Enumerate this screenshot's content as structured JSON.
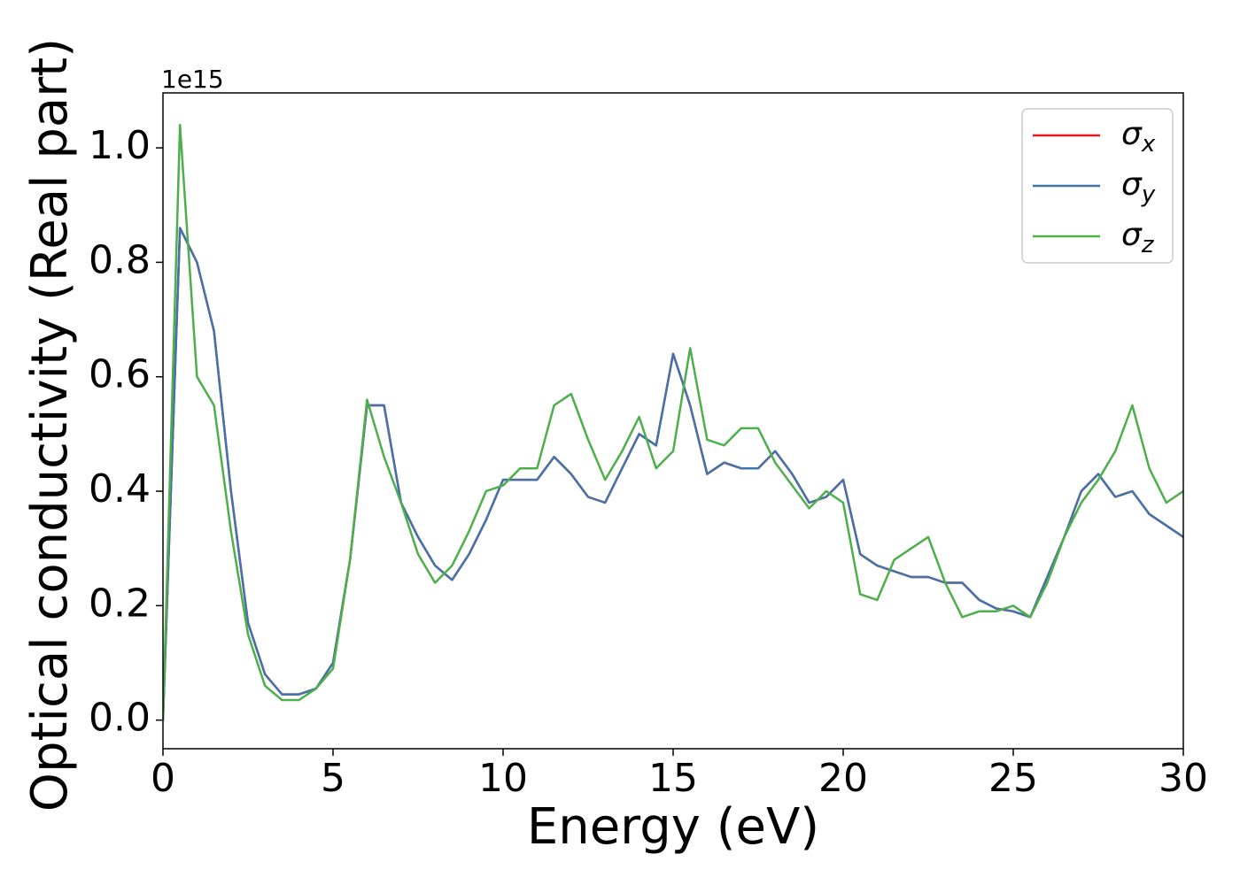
{
  "chart_data": {
    "type": "line",
    "x_label": "Energy (eV)",
    "y_label": "Optical conductivity (Real part)",
    "y_offset_label": "1e15",
    "x": [
      0,
      0.5,
      1,
      1.5,
      2,
      2.5,
      3,
      3.5,
      4,
      4.5,
      5,
      5.5,
      6,
      6.5,
      7,
      7.5,
      8,
      8.5,
      9,
      9.5,
      10,
      10.5,
      11,
      11.5,
      12,
      12.5,
      13,
      13.5,
      14,
      14.5,
      15,
      15.5,
      16,
      16.5,
      17,
      17.5,
      18,
      18.5,
      19,
      19.5,
      20,
      20.5,
      21,
      21.5,
      22,
      22.5,
      23,
      23.5,
      24,
      24.5,
      25,
      25.5,
      26,
      26.5,
      27,
      27.5,
      28,
      28.5,
      29,
      29.5,
      30
    ],
    "series": [
      {
        "name": "σx",
        "color": "#e41a1c",
        "values": [
          0,
          0.86,
          0.8,
          0.68,
          0.4,
          0.17,
          0.08,
          0.045,
          0.045,
          0.055,
          0.1,
          0.28,
          0.55,
          0.55,
          0.38,
          0.32,
          0.27,
          0.245,
          0.29,
          0.35,
          0.42,
          0.42,
          0.42,
          0.46,
          0.43,
          0.39,
          0.38,
          0.44,
          0.5,
          0.48,
          0.64,
          0.55,
          0.43,
          0.45,
          0.44,
          0.44,
          0.47,
          0.43,
          0.38,
          0.39,
          0.42,
          0.29,
          0.27,
          0.26,
          0.25,
          0.25,
          0.24,
          0.24,
          0.21,
          0.195,
          0.19,
          0.18,
          0.25,
          0.32,
          0.4,
          0.43,
          0.39,
          0.4,
          0.36,
          0.34,
          0.32
        ]
      },
      {
        "name": "σy",
        "color": "#4273aa",
        "values": [
          0,
          0.86,
          0.8,
          0.68,
          0.4,
          0.17,
          0.08,
          0.045,
          0.045,
          0.055,
          0.1,
          0.28,
          0.55,
          0.55,
          0.38,
          0.32,
          0.27,
          0.245,
          0.29,
          0.35,
          0.42,
          0.42,
          0.42,
          0.46,
          0.43,
          0.39,
          0.38,
          0.44,
          0.5,
          0.48,
          0.64,
          0.55,
          0.43,
          0.45,
          0.44,
          0.44,
          0.47,
          0.43,
          0.38,
          0.39,
          0.42,
          0.29,
          0.27,
          0.26,
          0.25,
          0.25,
          0.24,
          0.24,
          0.21,
          0.195,
          0.19,
          0.18,
          0.25,
          0.32,
          0.4,
          0.43,
          0.39,
          0.4,
          0.36,
          0.34,
          0.32
        ]
      },
      {
        "name": "σz",
        "color": "#4daf4a",
        "values": [
          0,
          1.04,
          0.6,
          0.55,
          0.33,
          0.15,
          0.06,
          0.035,
          0.035,
          0.055,
          0.09,
          0.28,
          0.56,
          0.46,
          0.38,
          0.29,
          0.24,
          0.27,
          0.33,
          0.4,
          0.41,
          0.44,
          0.44,
          0.55,
          0.57,
          0.49,
          0.42,
          0.47,
          0.53,
          0.44,
          0.47,
          0.65,
          0.49,
          0.48,
          0.51,
          0.51,
          0.45,
          0.41,
          0.37,
          0.4,
          0.38,
          0.22,
          0.21,
          0.28,
          0.3,
          0.32,
          0.24,
          0.18,
          0.19,
          0.19,
          0.2,
          0.18,
          0.24,
          0.32,
          0.38,
          0.42,
          0.47,
          0.55,
          0.44,
          0.38,
          0.4
        ]
      }
    ],
    "xlim": [
      0,
      30
    ],
    "xticks": [
      0,
      5,
      10,
      15,
      20,
      25,
      30
    ],
    "ylim": [
      -0.05,
      1.096
    ],
    "yticks": [
      {
        "value": 0,
        "label": "0.0"
      },
      0.2,
      0.4,
      0.6,
      0.8,
      {
        "value": 1,
        "label": "1.0"
      }
    ],
    "grid": false,
    "legend": "upper right"
  }
}
